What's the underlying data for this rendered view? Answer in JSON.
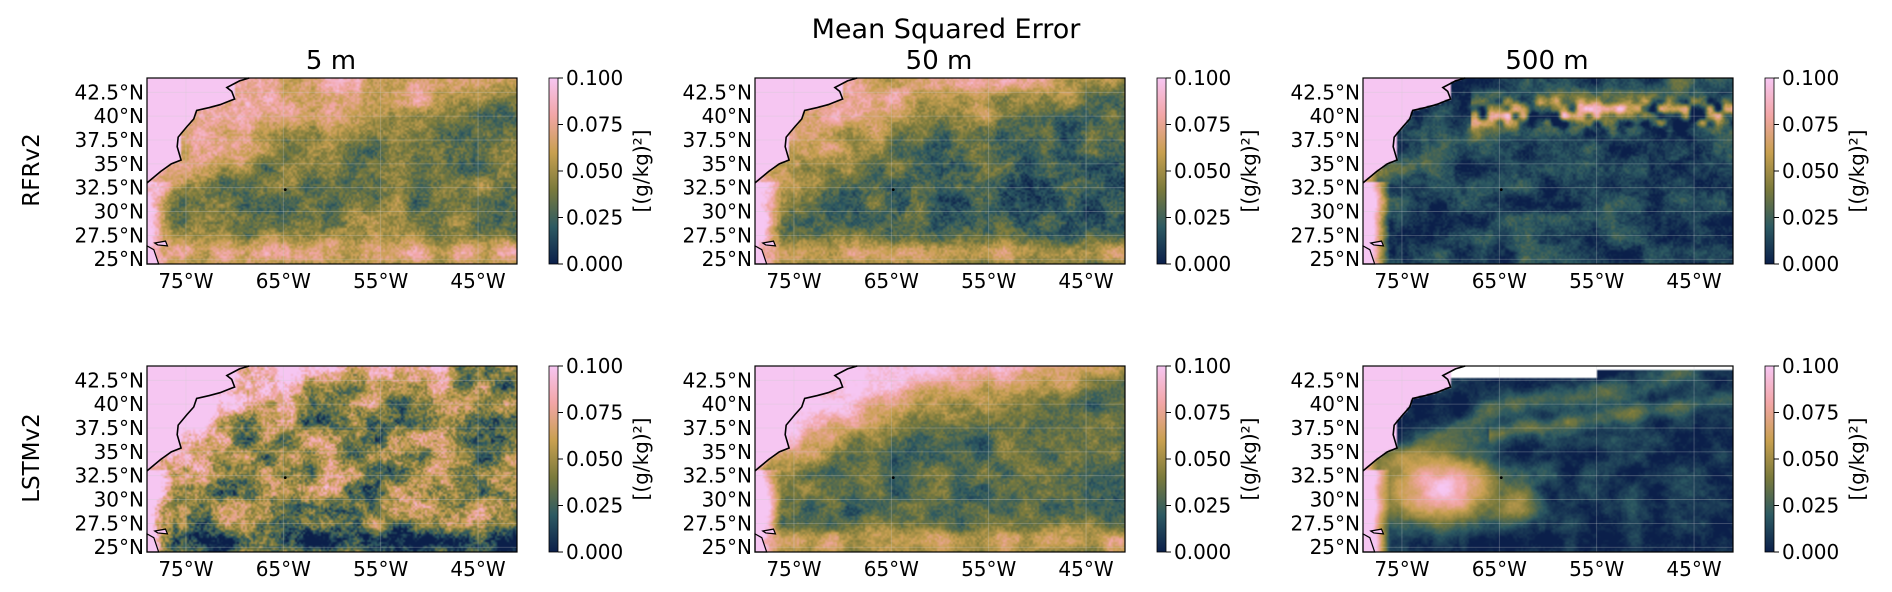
{
  "figure": {
    "suptitle": "Mean Squared Error",
    "column_titles": [
      "5 m",
      "50 m",
      "500 m"
    ],
    "row_labels": [
      "RFRv2",
      "LSTMv2"
    ]
  },
  "colors": {
    "colormap": [
      "#0b1f4a",
      "#2d5a62",
      "#7a7a3c",
      "#c8a050",
      "#f2a6a6",
      "#f6c6f2"
    ],
    "land": "#f6c6f2",
    "coast": "#000000"
  },
  "chart_data": [
    {
      "type": "heatmap",
      "panel": "RFRv2 5 m",
      "title": "5 m",
      "row": "RFRv2",
      "x_ticks": [
        "75°W",
        "65°W",
        "55°W",
        "45°W"
      ],
      "y_ticks": [
        "25°N",
        "27.5°N",
        "30°N",
        "32.5°N",
        "35°N",
        "37.5°N",
        "40°N",
        "42.5°N"
      ],
      "xlim": [
        -79,
        -41
      ],
      "ylim": [
        24.5,
        44
      ],
      "colorbar": {
        "label": "[(g/kg)²]",
        "ticks": [
          "0.000",
          "0.025",
          "0.050",
          "0.075",
          "0.100"
        ],
        "range": [
          0,
          0.1
        ]
      }
    },
    {
      "type": "heatmap",
      "panel": "RFRv2 50 m",
      "title": "50 m",
      "row": "RFRv2",
      "x_ticks": [
        "75°W",
        "65°W",
        "55°W",
        "45°W"
      ],
      "y_ticks": [
        "25°N",
        "27.5°N",
        "30°N",
        "32.5°N",
        "35°N",
        "37.5°N",
        "40°N",
        "42.5°N"
      ],
      "xlim": [
        -79,
        -41
      ],
      "ylim": [
        24.5,
        44
      ],
      "colorbar": {
        "label": "[(g/kg)²]",
        "ticks": [
          "0.000",
          "0.025",
          "0.050",
          "0.075",
          "0.100"
        ],
        "range": [
          0,
          0.1
        ]
      }
    },
    {
      "type": "heatmap",
      "panel": "RFRv2 500 m",
      "title": "500 m",
      "row": "RFRv2",
      "x_ticks": [
        "75°W",
        "65°W",
        "55°W",
        "45°W"
      ],
      "y_ticks": [
        "25°N",
        "27.5°N",
        "30°N",
        "32.5°N",
        "35°N",
        "37.5°N",
        "40°N",
        "42.5°N"
      ],
      "xlim": [
        -79,
        -41
      ],
      "ylim": [
        24.5,
        44
      ],
      "colorbar": {
        "label": "[(g/kg)²]",
        "ticks": [
          "0.000",
          "0.025",
          "0.050",
          "0.075",
          "0.100"
        ],
        "range": [
          0,
          0.1
        ]
      }
    },
    {
      "type": "heatmap",
      "panel": "LSTMv2 5 m",
      "title": "",
      "row": "LSTMv2",
      "x_ticks": [
        "75°W",
        "65°W",
        "55°W",
        "45°W"
      ],
      "y_ticks": [
        "25°N",
        "27.5°N",
        "30°N",
        "32.5°N",
        "35°N",
        "37.5°N",
        "40°N",
        "42.5°N"
      ],
      "xlim": [
        -79,
        -41
      ],
      "ylim": [
        24.5,
        44
      ],
      "colorbar": {
        "label": "[(g/kg)²]",
        "ticks": [
          "0.000",
          "0.025",
          "0.050",
          "0.075",
          "0.100"
        ],
        "range": [
          0,
          0.1
        ]
      }
    },
    {
      "type": "heatmap",
      "panel": "LSTMv2 50 m",
      "title": "",
      "row": "LSTMv2",
      "x_ticks": [
        "75°W",
        "65°W",
        "55°W",
        "45°W"
      ],
      "y_ticks": [
        "25°N",
        "27.5°N",
        "30°N",
        "32.5°N",
        "35°N",
        "37.5°N",
        "40°N",
        "42.5°N"
      ],
      "xlim": [
        -79,
        -41
      ],
      "ylim": [
        24.5,
        44
      ],
      "colorbar": {
        "label": "[(g/kg)²]",
        "ticks": [
          "0.000",
          "0.025",
          "0.050",
          "0.075",
          "0.100"
        ],
        "range": [
          0,
          0.1
        ]
      }
    },
    {
      "type": "heatmap",
      "panel": "LSTMv2 500 m",
      "title": "",
      "row": "LSTMv2",
      "x_ticks": [
        "75°W",
        "65°W",
        "55°W",
        "45°W"
      ],
      "y_ticks": [
        "25°N",
        "27.5°N",
        "30°N",
        "32.5°N",
        "35°N",
        "37.5°N",
        "40°N",
        "42.5°N"
      ],
      "xlim": [
        -79,
        -41
      ],
      "ylim": [
        24.5,
        44
      ],
      "colorbar": {
        "label": "[(g/kg)²]",
        "ticks": [
          "0.000",
          "0.025",
          "0.050",
          "0.075",
          "0.100"
        ],
        "range": [
          0,
          0.1
        ]
      }
    }
  ]
}
